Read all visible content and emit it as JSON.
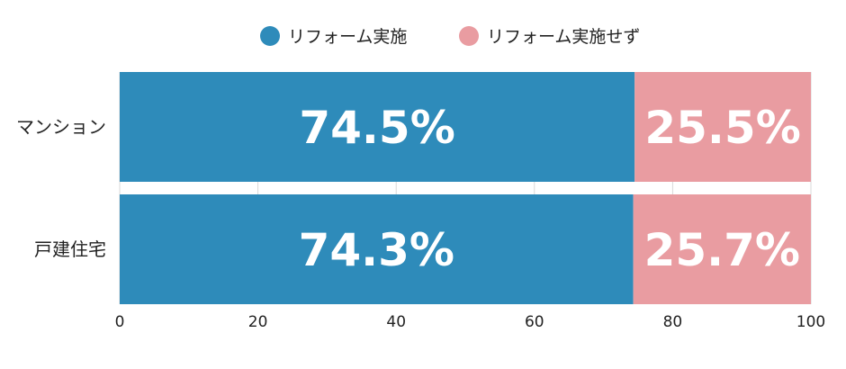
{
  "chart_data": {
    "type": "bar",
    "orientation": "horizontal",
    "stacked": true,
    "categories": [
      "マンション",
      "戸建住宅"
    ],
    "series": [
      {
        "name": "リフォーム実施",
        "values": [
          74.5,
          74.3
        ],
        "labels": [
          "74.5%",
          "74.3%"
        ],
        "color": "#2e8bba"
      },
      {
        "name": "リフォーム実施せず",
        "values": [
          25.5,
          25.7
        ],
        "labels": [
          "25.5%",
          "25.7%"
        ],
        "color": "#e99ca1"
      }
    ],
    "xlim": [
      0,
      100
    ],
    "xticks": [
      0,
      20,
      40,
      60,
      80,
      100
    ],
    "xtick_labels": [
      "0",
      "20",
      "40",
      "60",
      "80",
      "100"
    ],
    "grid": true,
    "legend_position": "top-center"
  }
}
